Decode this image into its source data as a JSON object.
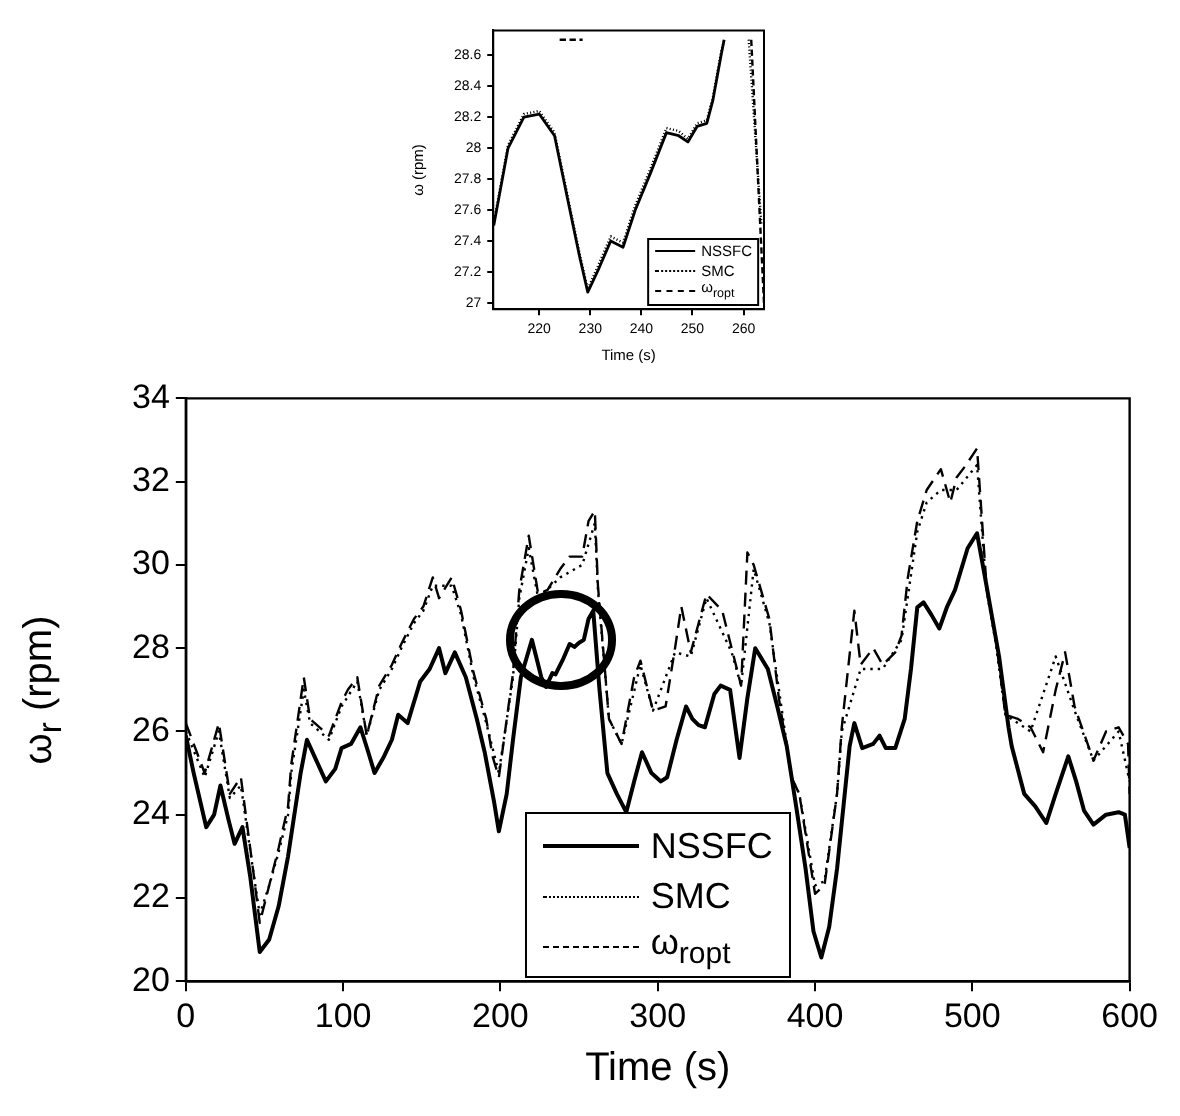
{
  "chart_data": [
    {
      "type": "line",
      "xlabel": "Time (s)",
      "ylabel": "ω$_{r}$ (rpm)",
      "xlim": [
        0,
        600
      ],
      "xticks": [
        0,
        100,
        200,
        300,
        400,
        500,
        600
      ],
      "ylim": [
        20,
        34
      ],
      "yticks": [
        20,
        22,
        24,
        26,
        28,
        30,
        32,
        34
      ],
      "grid": false,
      "legend": "bottom",
      "marker": "none",
      "series": [
        {
          "name": "NSSFC",
          "color": "#000000",
          "line_style": "solid",
          "x": [
            0,
            5,
            13,
            18,
            22,
            27,
            31,
            36,
            41,
            47,
            53,
            59,
            65,
            73,
            77,
            83,
            89,
            95,
            99,
            105,
            111,
            116,
            120,
            126,
            131,
            135,
            141,
            149,
            155,
            161,
            165,
            171,
            178,
            185,
            190,
            196,
            199,
            204,
            208,
            213,
            220,
            226,
            229,
            233,
            235,
            240,
            244,
            247,
            250,
            253,
            256,
            259,
            263,
            268,
            274,
            280,
            285,
            290,
            296,
            302,
            306,
            312,
            318,
            322,
            326,
            330,
            336,
            340,
            346,
            352,
            357,
            362,
            370,
            376,
            382,
            388,
            394,
            399,
            404,
            409,
            414,
            422,
            425,
            430,
            437,
            441,
            445,
            451,
            457,
            461,
            465,
            469,
            474,
            479,
            484,
            489,
            497,
            503,
            509,
            517,
            523,
            525,
            533,
            540,
            547,
            553,
            561,
            566,
            571,
            577,
            585,
            593,
            597,
            600
          ],
          "values": [
            25.9,
            25,
            23.7,
            24,
            24.7,
            23.9,
            23.3,
            23.7,
            22.5,
            20.7,
            21,
            21.8,
            23,
            25,
            25.8,
            25.3,
            24.8,
            25.1,
            25.6,
            25.7,
            26.1,
            25.5,
            25,
            25.4,
            25.8,
            26.4,
            26.2,
            27.2,
            27.5,
            28,
            27.4,
            27.9,
            27.3,
            26.3,
            25.5,
            24.3,
            23.6,
            24.5,
            25.8,
            27.3,
            28.2,
            27.3,
            27.07,
            27.4,
            27.37,
            27.75,
            28.1,
            28.03,
            28.13,
            28.2,
            28.7,
            28.9,
            27,
            25,
            24.5,
            24.06,
            24.8,
            25.5,
            25,
            24.8,
            24.9,
            25.8,
            26.6,
            26.3,
            26.15,
            26.1,
            26.9,
            27.1,
            27,
            25.36,
            26.8,
            28,
            27.5,
            26.6,
            25.65,
            24.2,
            22.7,
            21.2,
            20.57,
            21.3,
            22.7,
            25.65,
            26.2,
            25.6,
            25.7,
            25.9,
            25.6,
            25.6,
            26.3,
            27.5,
            28.98,
            29.1,
            28.8,
            28.47,
            29,
            29.4,
            30.4,
            30.76,
            29.5,
            27.8,
            26.1,
            25.65,
            24.5,
            24.2,
            23.8,
            24.5,
            25.4,
            24.8,
            24.1,
            23.76,
            24,
            24.06,
            24,
            23.2
          ]
        },
        {
          "name": "SMC",
          "color": "#000000",
          "line_style": "dotted",
          "x": [
            0,
            12,
            21,
            28,
            35,
            43,
            47,
            53,
            59,
            65,
            67,
            75,
            79,
            91,
            99,
            109,
            115,
            123,
            131,
            137,
            145,
            151,
            157,
            169,
            175,
            183,
            191,
            199,
            208,
            212,
            218,
            224,
            238,
            252,
            260,
            262,
            269,
            277,
            289,
            297,
            311,
            321,
            331,
            347,
            353,
            361,
            371,
            385,
            390,
            400,
            406,
            414,
            417,
            429,
            443,
            455,
            465,
            471,
            480,
            490,
            503,
            509,
            515,
            521,
            537,
            553,
            565,
            577,
            593,
            600
          ],
          "values": [
            26,
            24.9,
            26,
            24.4,
            24.7,
            22.6,
            21.6,
            22.3,
            23.1,
            24,
            25,
            27,
            26.2,
            25.8,
            26.6,
            27.2,
            25.9,
            27,
            27.5,
            28,
            28.6,
            28.9,
            29.5,
            29.5,
            28.8,
            27.3,
            26.2,
            25,
            27.3,
            29.2,
            30.4,
            29.2,
            29.7,
            30,
            31,
            29.4,
            26.3,
            25.7,
            27.6,
            26.5,
            27.9,
            27.8,
            29.2,
            27.9,
            27.1,
            29.9,
            28.6,
            24.9,
            24.5,
            22.3,
            22.4,
            24.5,
            26,
            27.5,
            27.5,
            28.2,
            30.8,
            31.5,
            31.8,
            31.8,
            32.4,
            29.4,
            28.1,
            26.4,
            26,
            27.8,
            26.5,
            25.3,
            26,
            24.8
          ]
        },
        {
          "name": "ω$_{ropt}$",
          "color": "#000000",
          "line_style": "dashed",
          "x": [
            0,
            12,
            21,
            28,
            35,
            43,
            47,
            53,
            59,
            65,
            67,
            75,
            79,
            91,
            99,
            103,
            109,
            115,
            123,
            131,
            137,
            145,
            151,
            157,
            161,
            169,
            175,
            183,
            191,
            195,
            199,
            208,
            212,
            218,
            224,
            230,
            238,
            244,
            252,
            256,
            260,
            262,
            269,
            277,
            285,
            289,
            297,
            305,
            311,
            315,
            321,
            331,
            341,
            347,
            353,
            357,
            361,
            371,
            377,
            385,
            390,
            400,
            406,
            414,
            417,
            425,
            429,
            437,
            443,
            451,
            455,
            459,
            465,
            471,
            480,
            486,
            490,
            496,
            503,
            509,
            515,
            521,
            529,
            537,
            545,
            553,
            559,
            565,
            577,
            585,
            593,
            599,
            600
          ],
          "values": [
            26.2,
            25,
            26.2,
            24.5,
            24.9,
            22.6,
            21.4,
            22.3,
            23.2,
            24.2,
            25.2,
            27.3,
            26.3,
            25.9,
            26.7,
            27,
            27.3,
            25.9,
            27.1,
            27.6,
            28.1,
            28.7,
            29,
            29.7,
            29.2,
            29.7,
            28.9,
            27.4,
            26.3,
            25.4,
            24.9,
            27.4,
            29.4,
            30.7,
            29.3,
            29.4,
            29.9,
            30.2,
            30.2,
            31.05,
            31.3,
            29.5,
            26.3,
            25.7,
            27.3,
            27.7,
            26.5,
            26.6,
            28,
            29,
            27.9,
            29.3,
            28.9,
            28,
            27.1,
            30.3,
            30,
            28.7,
            26.8,
            24.9,
            24.5,
            22.1,
            22.3,
            24.5,
            26.1,
            28.9,
            27.6,
            28,
            27.6,
            27.9,
            28.3,
            29.7,
            31.05,
            31.8,
            32.3,
            31.5,
            32.1,
            32.4,
            32.8,
            29.5,
            28.2,
            26.4,
            26.3,
            26.1,
            25.5,
            27,
            27.9,
            26.6,
            25.3,
            26,
            26.1,
            25.7,
            24.5
          ]
        }
      ]
    },
    {
      "type": "line",
      "xlabel": "Time (s)",
      "ylabel": "ω (rpm)",
      "xlim": [
        211,
        264
      ],
      "xticks": [
        220,
        230,
        240,
        250,
        260
      ],
      "ylim": [
        26.96,
        28.76
      ],
      "yticks": [
        27,
        27.2,
        27.4,
        27.6,
        27.8,
        28,
        28.2,
        28.4,
        28.6
      ],
      "grid": false,
      "legend": "bottom right",
      "marker": "none",
      "series": [
        {
          "name": "NSSFC",
          "color": "#000000",
          "line_style": "solid",
          "x": [
            211.1,
            213.9,
            217,
            220,
            223,
            225.5,
            227.9,
            229.5,
            231.5,
            234,
            236.4,
            238.8,
            241.8,
            244.9,
            247.3,
            249.1,
            250.9,
            252.8,
            254,
            255.6,
            256.2
          ],
          "values": [
            27.5,
            28,
            28.2,
            28.22,
            28.08,
            27.68,
            27.3,
            27.07,
            27.21,
            27.4,
            27.36,
            27.6,
            27.84,
            28.1,
            28.08,
            28.04,
            28.14,
            28.16,
            28.31,
            28.6,
            28.7
          ]
        },
        {
          "name": "SMC",
          "color": "#000000",
          "line_style": "dotted",
          "x": [
            211.1,
            213.9,
            217,
            220,
            223,
            225.5,
            227.9,
            229.5,
            231.5,
            234,
            236.4,
            238.8,
            241.8,
            244.9,
            247.3,
            249.1,
            250.9,
            252.8,
            254,
            255.6,
            256.2,
            258,
            261,
            263.5
          ],
          "values": [
            27.52,
            28.02,
            28.22,
            28.24,
            28.1,
            27.7,
            27.32,
            27.09,
            27.24,
            27.43,
            27.39,
            27.63,
            27.87,
            28.13,
            28.11,
            28.06,
            28.16,
            28.18,
            28.33,
            28.62,
            28.7,
            null,
            28.7,
            27.5
          ]
        },
        {
          "name": "ω$_{ropt}$",
          "color": "#000000",
          "line_style": "dashed",
          "x": [
            224,
            228.5,
            230,
            261.5,
            264
          ],
          "values": [
            28.7,
            28.7,
            null,
            28.7,
            27
          ]
        }
      ]
    }
  ]
}
